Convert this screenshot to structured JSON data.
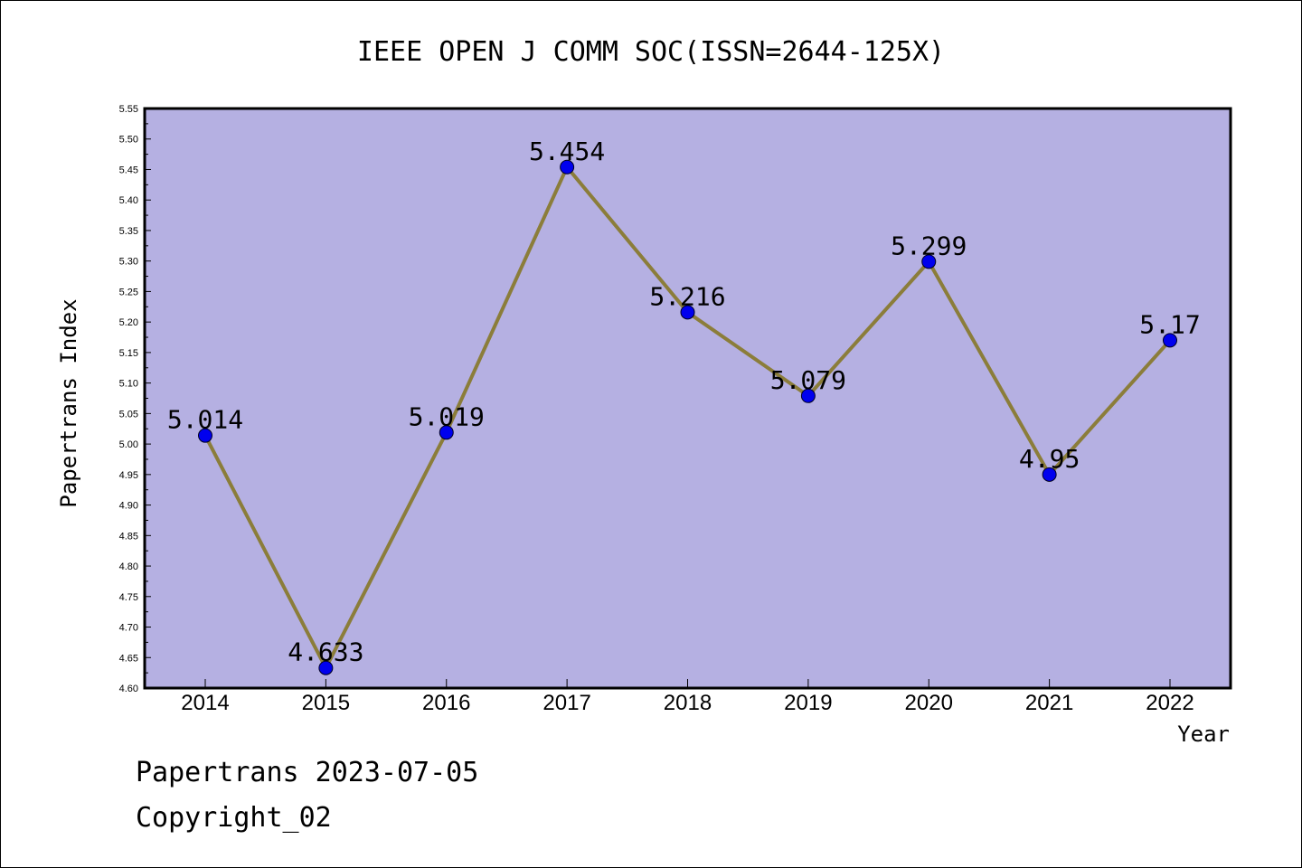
{
  "chart_data": {
    "type": "line",
    "title": "IEEE OPEN J COMM SOC(ISSN=2644-125X)",
    "xlabel": "Year",
    "ylabel": "Papertrans Index",
    "categories": [
      "2014",
      "2015",
      "2016",
      "2017",
      "2018",
      "2019",
      "2020",
      "2021",
      "2022"
    ],
    "series": [
      {
        "values": [
          5.014,
          4.633,
          5.019,
          5.454,
          5.216,
          5.079,
          5.299,
          4.95,
          5.17
        ],
        "labels": [
          "5.014",
          "4.633",
          "5.019",
          "5.454",
          "5.216",
          "5.079",
          "5.299",
          "4.95",
          "5.17"
        ]
      }
    ],
    "ylim": [
      4.6,
      5.55
    ],
    "yticks": [
      "4.60",
      "4.65",
      "4.70",
      "4.75",
      "4.80",
      "4.85",
      "4.90",
      "4.95",
      "5.00",
      "5.05",
      "5.10",
      "5.15",
      "5.20",
      "5.25",
      "5.30",
      "5.35",
      "5.40",
      "5.45",
      "5.50",
      "5.55"
    ],
    "grid": false,
    "colors": {
      "plot_background": "#b5b0e2",
      "line": "#8b7d3a",
      "marker": "#0000ee"
    }
  },
  "footer": {
    "line1": "Papertrans 2023-07-05",
    "line2": "Copyright_02"
  }
}
